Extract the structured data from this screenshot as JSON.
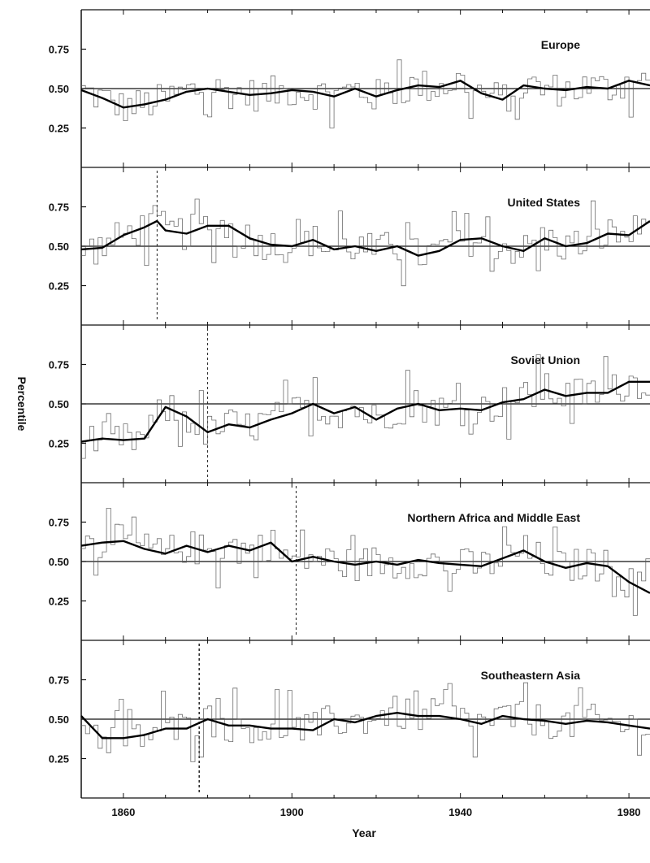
{
  "chart_data": {
    "type": "line",
    "xlabel": "Year",
    "ylabel": "Percentile",
    "xlim": [
      1850,
      1985
    ],
    "ylim": [
      0,
      1
    ],
    "x_ticks": [
      1860,
      1900,
      1940,
      1980
    ],
    "y_ticks": [
      0.25,
      0.5,
      0.75
    ],
    "y_tick_labels": [
      "0.25",
      "0.50",
      "0.75"
    ],
    "reference_value": 0.5,
    "panels": [
      {
        "title": "Europe",
        "marker_year": null,
        "smooth_x": [
          1850,
          1855,
          1860,
          1865,
          1870,
          1875,
          1880,
          1885,
          1890,
          1895,
          1900,
          1905,
          1910,
          1915,
          1920,
          1925,
          1930,
          1935,
          1940,
          1945,
          1950,
          1955,
          1960,
          1965,
          1970,
          1975,
          1980,
          1985
        ],
        "smooth_y": [
          0.49,
          0.44,
          0.38,
          0.4,
          0.43,
          0.48,
          0.5,
          0.48,
          0.46,
          0.47,
          0.49,
          0.48,
          0.45,
          0.5,
          0.45,
          0.49,
          0.52,
          0.51,
          0.55,
          0.47,
          0.43,
          0.52,
          0.5,
          0.49,
          0.51,
          0.5,
          0.55,
          0.52
        ]
      },
      {
        "title": "United States",
        "marker_year": 1868,
        "smooth_x": [
          1850,
          1855,
          1860,
          1865,
          1868,
          1870,
          1875,
          1880,
          1885,
          1890,
          1895,
          1900,
          1905,
          1910,
          1915,
          1920,
          1925,
          1930,
          1935,
          1940,
          1945,
          1950,
          1955,
          1960,
          1965,
          1970,
          1975,
          1980,
          1985
        ],
        "smooth_y": [
          0.48,
          0.49,
          0.57,
          0.62,
          0.66,
          0.6,
          0.58,
          0.63,
          0.63,
          0.55,
          0.51,
          0.5,
          0.54,
          0.48,
          0.5,
          0.47,
          0.5,
          0.44,
          0.47,
          0.54,
          0.55,
          0.5,
          0.47,
          0.55,
          0.5,
          0.52,
          0.58,
          0.57,
          0.66
        ]
      },
      {
        "title": "Soviet Union",
        "marker_year": 1880,
        "smooth_x": [
          1850,
          1855,
          1860,
          1865,
          1870,
          1875,
          1880,
          1885,
          1890,
          1895,
          1900,
          1905,
          1910,
          1915,
          1920,
          1925,
          1930,
          1935,
          1940,
          1945,
          1950,
          1955,
          1960,
          1965,
          1970,
          1975,
          1980,
          1985
        ],
        "smooth_y": [
          0.26,
          0.28,
          0.27,
          0.28,
          0.48,
          0.42,
          0.32,
          0.37,
          0.35,
          0.4,
          0.44,
          0.5,
          0.44,
          0.48,
          0.4,
          0.47,
          0.5,
          0.46,
          0.47,
          0.46,
          0.51,
          0.53,
          0.59,
          0.55,
          0.57,
          0.57,
          0.64,
          0.64
        ]
      },
      {
        "title": "Northern Africa and Middle East",
        "marker_year": 1901,
        "smooth_x": [
          1850,
          1855,
          1860,
          1865,
          1870,
          1875,
          1880,
          1885,
          1890,
          1895,
          1900,
          1905,
          1910,
          1915,
          1920,
          1925,
          1930,
          1935,
          1940,
          1945,
          1950,
          1955,
          1960,
          1965,
          1970,
          1975,
          1980,
          1985
        ],
        "smooth_y": [
          0.6,
          0.62,
          0.63,
          0.58,
          0.55,
          0.6,
          0.56,
          0.6,
          0.57,
          0.62,
          0.5,
          0.53,
          0.5,
          0.48,
          0.5,
          0.48,
          0.51,
          0.49,
          0.48,
          0.47,
          0.52,
          0.57,
          0.5,
          0.46,
          0.49,
          0.47,
          0.37,
          0.3
        ]
      },
      {
        "title": "Southeastern Asia",
        "marker_year": 1878,
        "smooth_x": [
          1850,
          1855,
          1860,
          1865,
          1870,
          1875,
          1880,
          1885,
          1890,
          1895,
          1900,
          1905,
          1910,
          1915,
          1920,
          1925,
          1930,
          1935,
          1940,
          1945,
          1950,
          1955,
          1960,
          1965,
          1970,
          1975,
          1980,
          1985
        ],
        "smooth_y": [
          0.52,
          0.38,
          0.38,
          0.4,
          0.44,
          0.44,
          0.5,
          0.46,
          0.46,
          0.44,
          0.44,
          0.43,
          0.5,
          0.48,
          0.52,
          0.54,
          0.52,
          0.52,
          0.5,
          0.47,
          0.52,
          0.5,
          0.49,
          0.47,
          0.49,
          0.48,
          0.46,
          0.44
        ]
      }
    ]
  }
}
